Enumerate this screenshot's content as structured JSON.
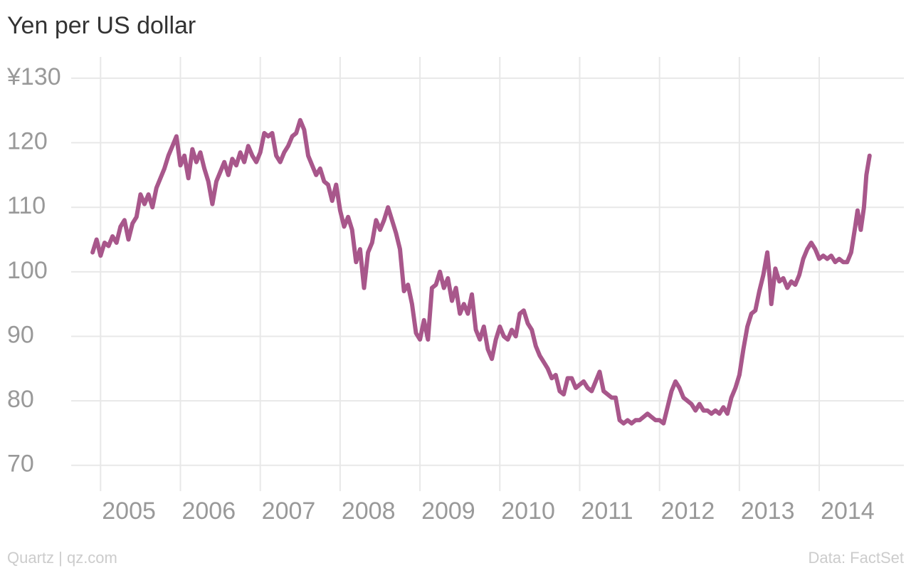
{
  "chart_data": {
    "type": "line",
    "title": "Yen per US dollar",
    "credit": "Quartz | qz.com",
    "source": "Data: FactSet",
    "color": "#a8578b",
    "grid": true,
    "xlim": [
      2003.83,
      2015.06
    ],
    "ylim": [
      66,
      133.3
    ],
    "xticks": [
      2005,
      2006,
      2007,
      2008,
      2009,
      2010,
      2011,
      2012,
      2013,
      2014
    ],
    "yticks": [
      70,
      80,
      90,
      100,
      110,
      120,
      {
        "value": 130,
        "label": "¥130"
      }
    ],
    "x": [
      2004.9,
      2004.95,
      2005.0,
      2005.05,
      2005.1,
      2005.15,
      2005.2,
      2005.25,
      2005.3,
      2005.35,
      2005.4,
      2005.45,
      2005.5,
      2005.55,
      2005.6,
      2005.65,
      2005.7,
      2005.75,
      2005.8,
      2005.85,
      2005.9,
      2005.95,
      2006.0,
      2006.05,
      2006.1,
      2006.15,
      2006.2,
      2006.25,
      2006.3,
      2006.35,
      2006.4,
      2006.45,
      2006.5,
      2006.55,
      2006.6,
      2006.65,
      2006.7,
      2006.75,
      2006.8,
      2006.85,
      2006.9,
      2006.95,
      2007.0,
      2007.05,
      2007.1,
      2007.15,
      2007.2,
      2007.25,
      2007.3,
      2007.35,
      2007.4,
      2007.45,
      2007.5,
      2007.55,
      2007.6,
      2007.65,
      2007.7,
      2007.75,
      2007.8,
      2007.85,
      2007.9,
      2007.95,
      2008.0,
      2008.05,
      2008.1,
      2008.15,
      2008.2,
      2008.25,
      2008.3,
      2008.35,
      2008.4,
      2008.45,
      2008.5,
      2008.55,
      2008.6,
      2008.65,
      2008.7,
      2008.75,
      2008.8,
      2008.85,
      2008.9,
      2008.95,
      2009.0,
      2009.05,
      2009.1,
      2009.15,
      2009.2,
      2009.25,
      2009.3,
      2009.35,
      2009.4,
      2009.45,
      2009.5,
      2009.55,
      2009.6,
      2009.65,
      2009.7,
      2009.75,
      2009.8,
      2009.85,
      2009.9,
      2009.95,
      2010.0,
      2010.05,
      2010.1,
      2010.15,
      2010.2,
      2010.25,
      2010.3,
      2010.35,
      2010.4,
      2010.45,
      2010.5,
      2010.55,
      2010.6,
      2010.65,
      2010.7,
      2010.75,
      2010.8,
      2010.85,
      2010.9,
      2010.95,
      2011.0,
      2011.05,
      2011.1,
      2011.15,
      2011.2,
      2011.25,
      2011.3,
      2011.35,
      2011.4,
      2011.45,
      2011.5,
      2011.55,
      2011.6,
      2011.65,
      2011.7,
      2011.75,
      2011.8,
      2011.85,
      2011.9,
      2011.95,
      2012.0,
      2012.05,
      2012.1,
      2012.15,
      2012.2,
      2012.25,
      2012.3,
      2012.35,
      2012.4,
      2012.45,
      2012.5,
      2012.55,
      2012.6,
      2012.65,
      2012.7,
      2012.75,
      2012.8,
      2012.85,
      2012.9,
      2012.95,
      2013.0,
      2013.05,
      2013.1,
      2013.15,
      2013.2,
      2013.25,
      2013.3,
      2013.35,
      2013.38,
      2013.4,
      2013.45,
      2013.5,
      2013.55,
      2013.6,
      2013.65,
      2013.7,
      2013.75,
      2013.8,
      2013.85,
      2013.9,
      2013.95,
      2014.0,
      2014.05,
      2014.1,
      2014.15,
      2014.2,
      2014.25,
      2014.3,
      2014.35,
      2014.4,
      2014.45,
      2014.48,
      2014.52,
      2014.56,
      2014.59,
      2014.63
    ],
    "values": [
      103,
      105,
      102.5,
      104.5,
      104,
      105.5,
      104.5,
      107,
      108,
      105,
      107.5,
      108.5,
      112,
      110.5,
      112,
      110,
      113,
      114.5,
      116,
      118,
      119.5,
      121,
      116.5,
      118,
      114.5,
      119,
      117,
      118.5,
      116,
      114,
      110.5,
      114,
      115.5,
      117,
      115,
      117.5,
      116.5,
      118.5,
      117,
      119.5,
      118,
      117,
      118.5,
      121.5,
      121,
      121.5,
      118,
      117,
      118.5,
      119.5,
      121,
      121.5,
      123.5,
      122,
      118,
      116.5,
      115,
      116,
      114,
      113.5,
      111,
      113.5,
      109.5,
      107,
      108.5,
      106.5,
      101.5,
      103.5,
      97.5,
      103,
      104.5,
      108,
      106.5,
      108,
      110,
      108,
      106,
      103.5,
      97,
      98,
      95,
      90.5,
      89.5,
      92.5,
      89.5,
      97.5,
      98,
      100,
      97.5,
      99,
      95.5,
      97.5,
      93.5,
      95,
      93.5,
      96.5,
      91,
      89.5,
      91.5,
      88,
      86.5,
      89.5,
      91.5,
      90,
      89.5,
      91,
      90,
      93.5,
      94,
      92,
      91,
      88.5,
      87,
      86,
      85,
      83.5,
      84,
      81.5,
      81,
      83.5,
      83.5,
      82,
      82.5,
      83,
      82,
      81.5,
      83,
      84.5,
      81.5,
      81,
      80.5,
      80.5,
      77,
      76.5,
      77,
      76.5,
      77,
      77,
      77.5,
      78,
      77.5,
      77,
      77,
      76.5,
      79,
      81.5,
      83,
      82,
      80.5,
      80,
      79.5,
      78.5,
      79.5,
      78.5,
      78.5,
      78,
      78.5,
      78,
      79,
      78,
      80.5,
      82,
      84,
      88,
      91.5,
      93.5,
      94,
      97,
      99.5,
      103,
      99,
      95,
      100.5,
      98.5,
      99,
      97.5,
      98.5,
      98,
      99.5,
      102,
      103.5,
      104.5,
      103.5,
      102,
      102.5,
      102,
      102.5,
      101.5,
      102,
      101.5,
      101.5,
      103,
      107,
      109.5,
      106.5,
      110,
      115,
      118
    ]
  }
}
